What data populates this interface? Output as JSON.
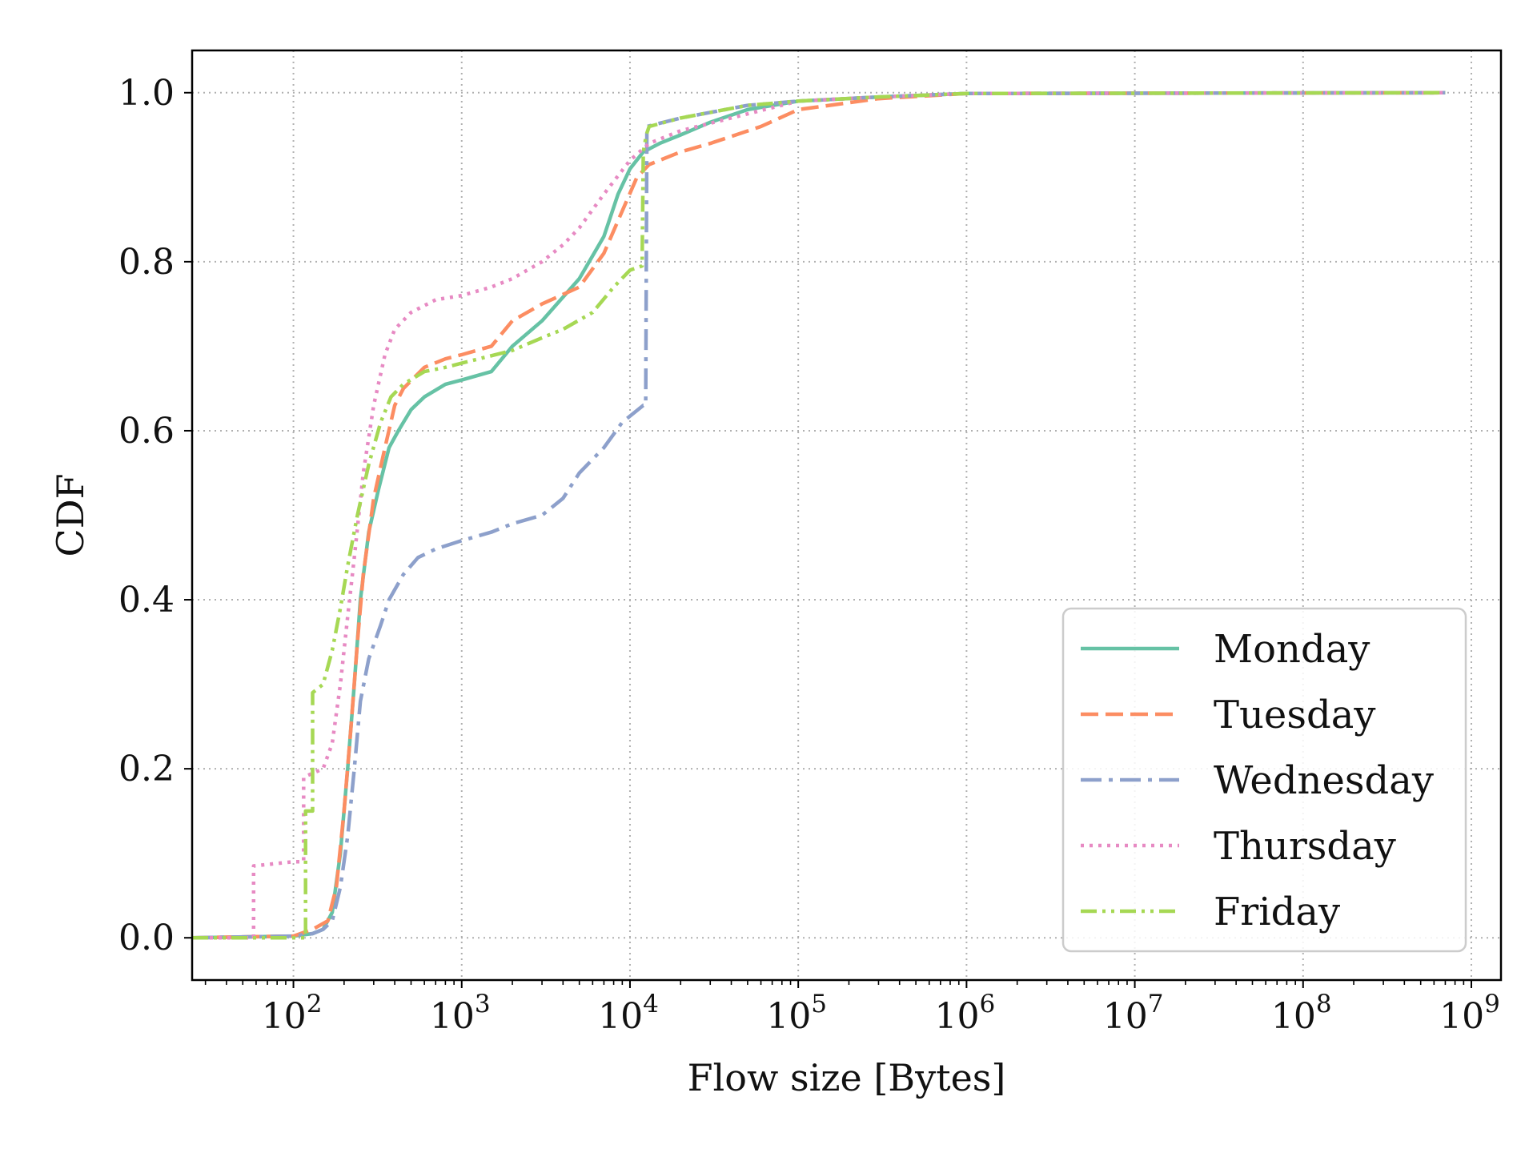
{
  "chart_data": {
    "type": "line",
    "title": "",
    "xlabel": "Flow size [Bytes]",
    "ylabel": "CDF",
    "x_scale": "log",
    "xlim": [
      25,
      1500000000
    ],
    "ylim": [
      -0.05,
      1.05
    ],
    "grid": true,
    "legend_position": "bottom-right",
    "x_ticks": [
      {
        "value": 100,
        "base": "10",
        "exp": "2"
      },
      {
        "value": 1000,
        "base": "10",
        "exp": "3"
      },
      {
        "value": 10000,
        "base": "10",
        "exp": "4"
      },
      {
        "value": 100000,
        "base": "10",
        "exp": "5"
      },
      {
        "value": 1000000,
        "base": "10",
        "exp": "6"
      },
      {
        "value": 10000000,
        "base": "10",
        "exp": "7"
      },
      {
        "value": 100000000,
        "base": "10",
        "exp": "8"
      },
      {
        "value": 1000000000,
        "base": "10",
        "exp": "9"
      }
    ],
    "y_ticks": [
      {
        "value": 0.0,
        "label": "0.0"
      },
      {
        "value": 0.2,
        "label": "0.2"
      },
      {
        "value": 0.4,
        "label": "0.4"
      },
      {
        "value": 0.6,
        "label": "0.6"
      },
      {
        "value": 0.8,
        "label": "0.8"
      },
      {
        "value": 1.0,
        "label": "1.0"
      }
    ],
    "series": [
      {
        "name": "Monday",
        "color": "#66c2a5",
        "dash": "solid",
        "points": [
          [
            25,
            0
          ],
          [
            100,
            0.002
          ],
          [
            130,
            0.005
          ],
          [
            150,
            0.01
          ],
          [
            170,
            0.03
          ],
          [
            190,
            0.1
          ],
          [
            210,
            0.2
          ],
          [
            230,
            0.3
          ],
          [
            250,
            0.4
          ],
          [
            280,
            0.48
          ],
          [
            320,
            0.53
          ],
          [
            370,
            0.58
          ],
          [
            420,
            0.6
          ],
          [
            500,
            0.625
          ],
          [
            600,
            0.64
          ],
          [
            800,
            0.655
          ],
          [
            1000,
            0.66
          ],
          [
            1500,
            0.67
          ],
          [
            2000,
            0.7
          ],
          [
            3000,
            0.73
          ],
          [
            5000,
            0.78
          ],
          [
            7000,
            0.83
          ],
          [
            8500,
            0.88
          ],
          [
            10000,
            0.91
          ],
          [
            12000,
            0.93
          ],
          [
            15000,
            0.94
          ],
          [
            20000,
            0.95
          ],
          [
            30000,
            0.965
          ],
          [
            50000,
            0.98
          ],
          [
            100000,
            0.99
          ],
          [
            300000,
            0.995
          ],
          [
            1000000,
            0.999
          ],
          [
            700000000,
            1.0
          ]
        ]
      },
      {
        "name": "Tuesday",
        "color": "#fc8d62",
        "dash": "dashed",
        "points": [
          [
            25,
            0
          ],
          [
            100,
            0.002
          ],
          [
            130,
            0.01
          ],
          [
            160,
            0.02
          ],
          [
            180,
            0.06
          ],
          [
            200,
            0.15
          ],
          [
            220,
            0.25
          ],
          [
            240,
            0.35
          ],
          [
            260,
            0.43
          ],
          [
            300,
            0.52
          ],
          [
            350,
            0.58
          ],
          [
            400,
            0.63
          ],
          [
            450,
            0.65
          ],
          [
            600,
            0.675
          ],
          [
            800,
            0.685
          ],
          [
            1000,
            0.69
          ],
          [
            1500,
            0.7
          ],
          [
            2000,
            0.73
          ],
          [
            3000,
            0.75
          ],
          [
            5000,
            0.77
          ],
          [
            7000,
            0.81
          ],
          [
            9000,
            0.86
          ],
          [
            11000,
            0.9
          ],
          [
            13000,
            0.915
          ],
          [
            20000,
            0.93
          ],
          [
            30000,
            0.94
          ],
          [
            60000,
            0.96
          ],
          [
            100000,
            0.98
          ],
          [
            300000,
            0.993
          ],
          [
            1000000,
            0.999
          ],
          [
            700000000,
            1.0
          ]
        ]
      },
      {
        "name": "Wednesday",
        "color": "#8da0cb",
        "dash": "dashdot",
        "points": [
          [
            25,
            0
          ],
          [
            100,
            0.002
          ],
          [
            130,
            0.005
          ],
          [
            150,
            0.01
          ],
          [
            170,
            0.02
          ],
          [
            190,
            0.06
          ],
          [
            210,
            0.12
          ],
          [
            230,
            0.2
          ],
          [
            250,
            0.28
          ],
          [
            280,
            0.33
          ],
          [
            330,
            0.37
          ],
          [
            370,
            0.4
          ],
          [
            450,
            0.43
          ],
          [
            550,
            0.45
          ],
          [
            700,
            0.46
          ],
          [
            1000,
            0.47
          ],
          [
            1500,
            0.48
          ],
          [
            2000,
            0.49
          ],
          [
            3000,
            0.5
          ],
          [
            4000,
            0.52
          ],
          [
            5000,
            0.55
          ],
          [
            7000,
            0.58
          ],
          [
            9000,
            0.61
          ],
          [
            12000,
            0.63
          ],
          [
            12400,
            0.63
          ],
          [
            12600,
            0.96
          ],
          [
            20000,
            0.97
          ],
          [
            50000,
            0.985
          ],
          [
            100000,
            0.99
          ],
          [
            300000,
            0.995
          ],
          [
            1000000,
            0.999
          ],
          [
            700000000,
            1.0
          ]
        ]
      },
      {
        "name": "Thursday",
        "color": "#e78ac3",
        "dash": "dotted",
        "points": [
          [
            25,
            0
          ],
          [
            58,
            0
          ],
          [
            58,
            0.085
          ],
          [
            100,
            0.09
          ],
          [
            115,
            0.09
          ],
          [
            115,
            0.19
          ],
          [
            150,
            0.2
          ],
          [
            170,
            0.23
          ],
          [
            190,
            0.3
          ],
          [
            210,
            0.38
          ],
          [
            230,
            0.45
          ],
          [
            260,
            0.55
          ],
          [
            300,
            0.63
          ],
          [
            350,
            0.69
          ],
          [
            400,
            0.72
          ],
          [
            500,
            0.74
          ],
          [
            700,
            0.755
          ],
          [
            1000,
            0.76
          ],
          [
            1500,
            0.77
          ],
          [
            2000,
            0.78
          ],
          [
            3000,
            0.8
          ],
          [
            4000,
            0.82
          ],
          [
            5000,
            0.84
          ],
          [
            7000,
            0.88
          ],
          [
            10000,
            0.92
          ],
          [
            13000,
            0.94
          ],
          [
            20000,
            0.955
          ],
          [
            50000,
            0.975
          ],
          [
            100000,
            0.99
          ],
          [
            300000,
            0.995
          ],
          [
            1000000,
            0.999
          ],
          [
            700000000,
            1.0
          ]
        ]
      },
      {
        "name": "Friday",
        "color": "#a6d854",
        "dash": "dashdotdot",
        "points": [
          [
            25,
            0
          ],
          [
            118,
            0
          ],
          [
            118,
            0.15
          ],
          [
            130,
            0.15
          ],
          [
            130,
            0.29
          ],
          [
            150,
            0.3
          ],
          [
            170,
            0.34
          ],
          [
            190,
            0.39
          ],
          [
            210,
            0.44
          ],
          [
            240,
            0.5
          ],
          [
            280,
            0.56
          ],
          [
            330,
            0.61
          ],
          [
            380,
            0.64
          ],
          [
            450,
            0.655
          ],
          [
            600,
            0.67
          ],
          [
            800,
            0.675
          ],
          [
            1000,
            0.68
          ],
          [
            2000,
            0.695
          ],
          [
            3000,
            0.71
          ],
          [
            4000,
            0.72
          ],
          [
            6000,
            0.74
          ],
          [
            8000,
            0.77
          ],
          [
            10000,
            0.79
          ],
          [
            11800,
            0.795
          ],
          [
            12000,
            0.93
          ],
          [
            12500,
            0.95
          ],
          [
            13000,
            0.96
          ],
          [
            20000,
            0.97
          ],
          [
            50000,
            0.985
          ],
          [
            100000,
            0.99
          ],
          [
            300000,
            0.995
          ],
          [
            1000000,
            0.999
          ],
          [
            700000000,
            1.0
          ]
        ]
      }
    ]
  }
}
